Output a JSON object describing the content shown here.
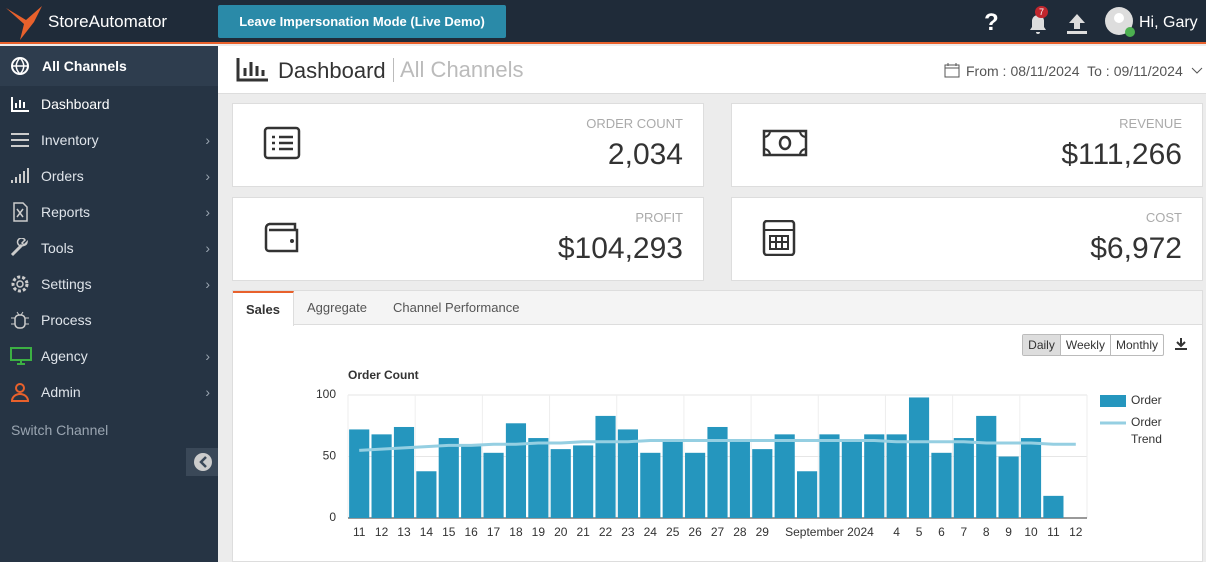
{
  "header": {
    "brand": "StoreAutomator",
    "impersonation_button": "Leave Impersonation Mode (Live Demo)",
    "notifications": "7",
    "user": "Hi, Gary"
  },
  "sidebar": {
    "channel": "All Channels",
    "items": [
      "Dashboard",
      "Inventory",
      "Orders",
      "Reports",
      "Tools",
      "Settings",
      "Process",
      "Agency",
      "Admin"
    ],
    "switch": "Switch Channel"
  },
  "page": {
    "title": "Dashboard",
    "subtitle": "All Channels",
    "from_label": "From :",
    "from": "08/11/2024",
    "to_label": "To :",
    "to": "09/11/2024"
  },
  "cards": [
    {
      "label": "ORDER COUNT",
      "value": "2,034"
    },
    {
      "label": "REVENUE",
      "value": "$111,266"
    },
    {
      "label": "PROFIT",
      "value": "$104,293"
    },
    {
      "label": "COST",
      "value": "$6,972"
    }
  ],
  "tabs": [
    "Sales",
    "Aggregate",
    "Channel Performance"
  ],
  "periods": [
    "Daily",
    "Weekly",
    "Monthly"
  ],
  "chart": {
    "type": "bar",
    "title": "Order Count",
    "categories": [
      "11",
      "12",
      "13",
      "14",
      "15",
      "16",
      "17",
      "18",
      "19",
      "20",
      "21",
      "22",
      "23",
      "24",
      "25",
      "26",
      "27",
      "28",
      "29",
      null,
      null,
      "September 2024",
      null,
      null,
      "4",
      "5",
      "6",
      "7",
      "8",
      "9",
      "10",
      "11",
      "12"
    ],
    "series": [
      {
        "name": "Order",
        "color": "#2596be",
        "values": [
          72,
          68,
          74,
          38,
          65,
          59,
          53,
          77,
          65,
          56,
          59,
          83,
          72,
          53,
          62,
          53,
          74,
          62,
          56,
          68,
          38,
          68,
          62,
          68,
          68,
          98,
          53,
          65,
          83,
          50,
          65,
          18,
          0
        ]
      },
      {
        "name": "Order Trend",
        "type": "line",
        "color": "#95cfe2",
        "values": [
          55,
          56,
          57,
          58,
          59,
          59,
          60,
          60,
          61,
          61,
          62,
          62,
          62,
          63,
          63,
          63,
          63,
          63,
          63,
          63,
          63,
          63,
          63,
          63,
          62,
          62,
          62,
          62,
          61,
          61,
          61,
          60,
          60
        ]
      }
    ],
    "ylim": [
      0,
      100
    ],
    "yticks": [
      0,
      50,
      100
    ],
    "grid": true
  }
}
